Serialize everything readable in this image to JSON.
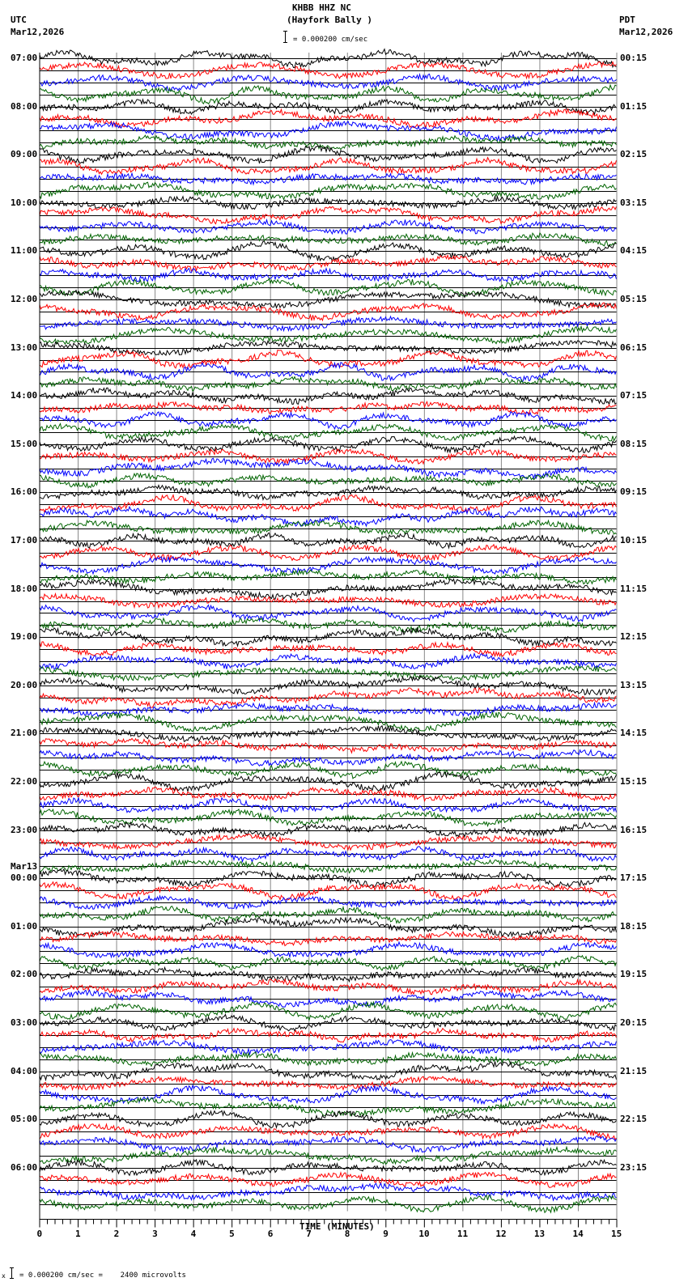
{
  "header": {
    "station": "KHBB HHZ NC",
    "location": "(Hayfork Bally )",
    "scale_text": "= 0.000200 cm/sec",
    "left_tz": "UTC",
    "left_date": "Mar12,2026",
    "right_tz": "PDT",
    "right_date": "Mar12,2026"
  },
  "footer": {
    "scale_text": "= 0.000200 cm/sec =    2400 microvolts",
    "scale_prefix": "x"
  },
  "chart_data": {
    "type": "line",
    "title": "KHBB HHZ NC (Hayfork Bally )",
    "xlabel": "TIME (MINUTES)",
    "ylabel": "",
    "xlim": [
      0,
      15
    ],
    "x_ticks": [
      "0",
      "1",
      "2",
      "3",
      "4",
      "5",
      "6",
      "7",
      "8",
      "9",
      "10",
      "11",
      "12",
      "13",
      "14",
      "15"
    ],
    "minor_ticks_per_minute": 5,
    "grid": true,
    "traces_per_hour": 4,
    "trace_colors": [
      "#000000",
      "#ff0000",
      "#0000ff",
      "#006400"
    ],
    "date_change_label": "Mar13",
    "left_labels": [
      "07:00",
      "08:00",
      "09:00",
      "10:00",
      "11:00",
      "12:00",
      "13:00",
      "14:00",
      "15:00",
      "16:00",
      "17:00",
      "18:00",
      "19:00",
      "20:00",
      "21:00",
      "22:00",
      "23:00",
      "00:00",
      "01:00",
      "02:00",
      "03:00",
      "04:00",
      "05:00",
      "06:00"
    ],
    "right_labels": [
      "00:15",
      "01:15",
      "02:15",
      "03:15",
      "04:15",
      "05:15",
      "06:15",
      "07:15",
      "08:15",
      "09:15",
      "10:15",
      "11:15",
      "12:15",
      "13:15",
      "14:15",
      "15:15",
      "16:15",
      "17:15",
      "18:15",
      "19:15",
      "20:15",
      "21:15",
      "22:15",
      "23:15"
    ],
    "scale": "0.000200 cm/sec = 2400 microvolts"
  }
}
